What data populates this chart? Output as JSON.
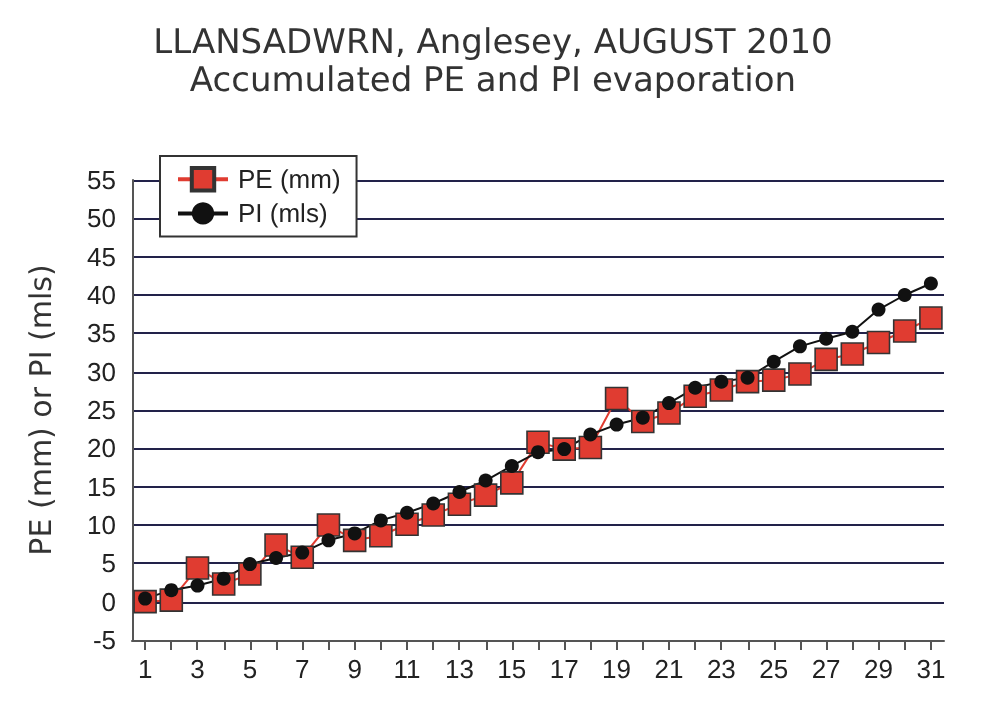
{
  "chart_data": {
    "type": "line",
    "title": "LLANSADWRN, Anglesey, AUGUST 2010",
    "subtitle": "Accumulated PE and PI evaporation",
    "ylabel": "PE (mm) or PI (mls)",
    "x": [
      1,
      2,
      3,
      4,
      5,
      6,
      7,
      8,
      9,
      10,
      11,
      12,
      13,
      14,
      15,
      16,
      17,
      18,
      19,
      20,
      21,
      22,
      23,
      24,
      25,
      26,
      27,
      28,
      29,
      30,
      31
    ],
    "xlim": [
      0.5,
      31.5
    ],
    "xticks": [
      1,
      3,
      5,
      7,
      9,
      11,
      13,
      15,
      17,
      19,
      21,
      23,
      25,
      27,
      29,
      31
    ],
    "ylim": [
      -5,
      55
    ],
    "yticks": [
      -5,
      0,
      5,
      10,
      15,
      20,
      25,
      30,
      35,
      40,
      45,
      50,
      55
    ],
    "grid": "y",
    "legend": "top left",
    "series": [
      {
        "name": "PE (mm)",
        "color": "#e03c31",
        "marker": "square",
        "values": [
          0,
          0.2,
          4.4,
          2.3,
          3.6,
          7.4,
          5.8,
          10,
          8,
          8.6,
          10.1,
          11.3,
          12.7,
          13.9,
          15.5,
          20.8,
          19.9,
          20.1,
          26.5,
          23.5,
          24.6,
          26.8,
          27.6,
          28.7,
          28.9,
          29.7,
          31.6,
          32.3,
          33.8,
          35.3,
          37
        ]
      },
      {
        "name": "PI (mls)",
        "color": "#111111",
        "marker": "circle",
        "values": [
          0.4,
          1.5,
          2.1,
          3,
          4.9,
          5.7,
          6.4,
          8,
          8.9,
          10.6,
          11.6,
          12.8,
          14.3,
          15.8,
          17.7,
          19.5,
          19.9,
          21.8,
          23.1,
          24,
          25.9,
          27.9,
          28.7,
          29.2,
          31.3,
          33.3,
          34.3,
          35.2,
          38.1,
          40,
          41.5
        ]
      }
    ]
  }
}
